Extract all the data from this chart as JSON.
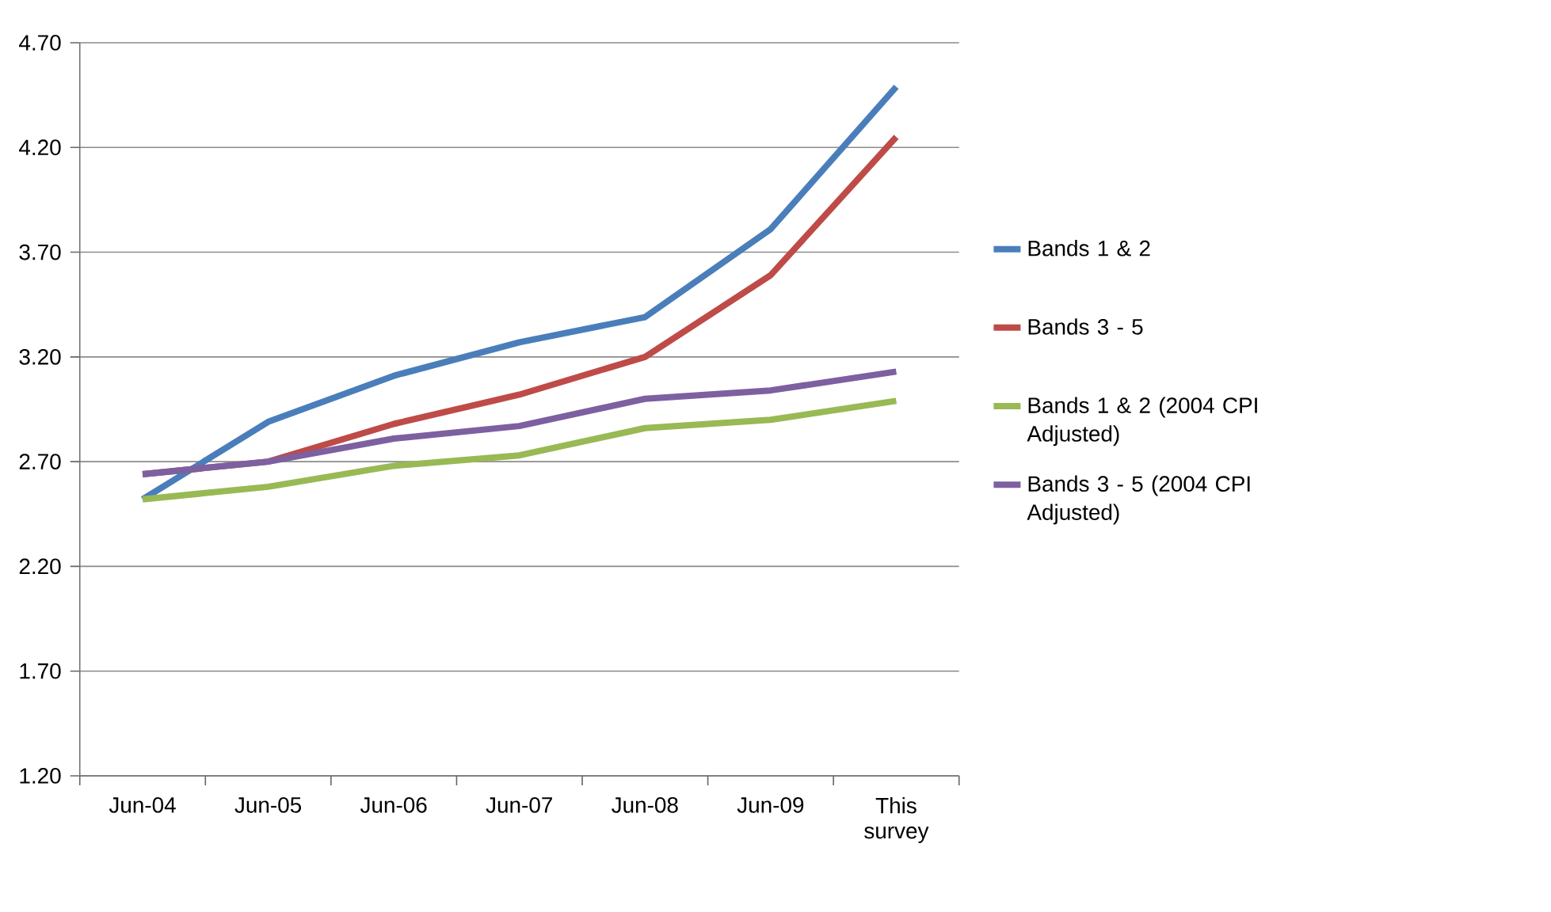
{
  "chart_data": {
    "type": "line",
    "categories": [
      "Jun-04",
      "Jun-05",
      "Jun-06",
      "Jun-07",
      "Jun-08",
      "Jun-09",
      "This survey"
    ],
    "series": [
      {
        "name": "Bands 1 & 2",
        "color": "#4a7ebb",
        "values": [
          2.52,
          2.89,
          3.11,
          3.27,
          3.39,
          3.81,
          4.49
        ]
      },
      {
        "name": "Bands 3 - 5",
        "color": "#be4b48",
        "values": [
          2.64,
          2.7,
          2.88,
          3.02,
          3.2,
          3.59,
          4.25
        ]
      },
      {
        "name": "Bands 1 & 2 (2004 CPI Adjusted)",
        "color": "#98b954",
        "values": [
          2.52,
          2.58,
          2.68,
          2.73,
          2.86,
          2.9,
          2.99
        ]
      },
      {
        "name": "Bands 3 - 5 (2004 CPI Adjusted)",
        "color": "#7d60a0",
        "values": [
          2.64,
          2.7,
          2.81,
          2.87,
          3.0,
          3.04,
          3.13
        ]
      }
    ],
    "ylim": [
      1.2,
      4.7
    ],
    "yticks": [
      {
        "value": 1.2,
        "label": "1.20"
      },
      {
        "value": 1.7,
        "label": "1.70"
      },
      {
        "value": 2.2,
        "label": "2.20"
      },
      {
        "value": 2.7,
        "label": "2.70"
      },
      {
        "value": 3.2,
        "label": "3.20"
      },
      {
        "value": 3.7,
        "label": "3.70"
      },
      {
        "value": 4.2,
        "label": "4.20"
      },
      {
        "value": 4.7,
        "label": "4.70"
      }
    ],
    "grid": "y",
    "legend": "right",
    "marker": "none",
    "line_style": "solid"
  }
}
